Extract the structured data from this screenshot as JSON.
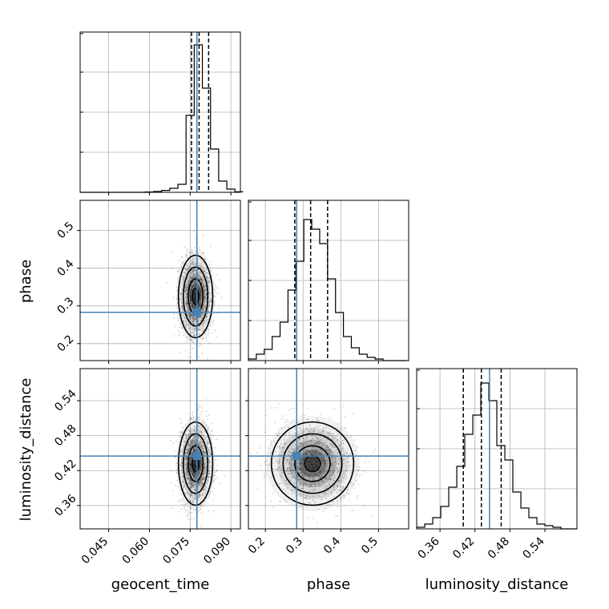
{
  "colors": {
    "truth": "#4682b4",
    "hist": "#000000",
    "quantile": "#000000",
    "grid": "#b0b0b0",
    "scatter": "#000000"
  },
  "chart_data": {
    "type": "corner",
    "parameters": [
      "geocent_time",
      "phase",
      "luminosity_distance"
    ],
    "labels": {
      "x": [
        "geocent_time",
        "phase",
        "luminosity_distance"
      ],
      "y": [
        "phase",
        "luminosity_distance"
      ]
    },
    "ranges": [
      [
        0.0345,
        0.0935
      ],
      [
        0.155,
        0.58
      ],
      [
        0.32,
        0.595
      ]
    ],
    "ticks": {
      "geocent_time": [
        "0.045",
        "0.060",
        "0.075",
        "0.090"
      ],
      "phase": [
        "0.2",
        "0.3",
        "0.4",
        "0.5"
      ],
      "luminosity_distance": [
        "0.36",
        "0.42",
        "0.48",
        "0.54"
      ]
    },
    "truths": [
      0.0775,
      0.283,
      0.445
    ],
    "quantiles": [
      [
        0.0755,
        0.0783,
        0.0818
      ],
      [
        0.278,
        0.32,
        0.365
      ],
      [
        0.4,
        0.431,
        0.465
      ]
    ],
    "histograms": [
      {
        "edges": [
          0.0345,
          0.0375,
          0.0405,
          0.0435,
          0.0465,
          0.0495,
          0.0525,
          0.0555,
          0.0585,
          0.0615,
          0.0645,
          0.0675,
          0.0705,
          0.0735,
          0.0765,
          0.0795,
          0.0825,
          0.0855,
          0.0885,
          0.0915,
          0.0945
        ],
        "counts": [
          0,
          0,
          0,
          0,
          0,
          0,
          0,
          0,
          0.002,
          0.005,
          0.012,
          0.025,
          0.05,
          0.48,
          0.92,
          0.65,
          0.27,
          0.07,
          0.02,
          0.003
        ]
      },
      {
        "edges": [
          0.155,
          0.176,
          0.197,
          0.218,
          0.239,
          0.26,
          0.281,
          0.302,
          0.323,
          0.344,
          0.365,
          0.386,
          0.407,
          0.428,
          0.449,
          0.47,
          0.491,
          0.512,
          0.533,
          0.554,
          0.575
        ],
        "counts": [
          0.01,
          0.04,
          0.07,
          0.15,
          0.24,
          0.44,
          0.62,
          0.88,
          0.82,
          0.73,
          0.51,
          0.3,
          0.15,
          0.08,
          0.04,
          0.02,
          0.01,
          0,
          0,
          0
        ]
      },
      {
        "edges": [
          0.32,
          0.3338,
          0.3475,
          0.3613,
          0.375,
          0.3888,
          0.4025,
          0.4163,
          0.43,
          0.4438,
          0.4575,
          0.4713,
          0.485,
          0.4988,
          0.5125,
          0.5263,
          0.54,
          0.5538,
          0.5675,
          0.5813,
          0.595
        ],
        "counts": [
          0.01,
          0.03,
          0.07,
          0.14,
          0.26,
          0.39,
          0.59,
          0.71,
          0.91,
          0.8,
          0.52,
          0.43,
          0.23,
          0.13,
          0.07,
          0.03,
          0.02,
          0.01,
          0,
          0
        ]
      }
    ],
    "posterior_peak": {
      "geocent_time": 0.077,
      "phase": 0.325,
      "luminosity_distance": 0.432
    },
    "grid": true
  }
}
